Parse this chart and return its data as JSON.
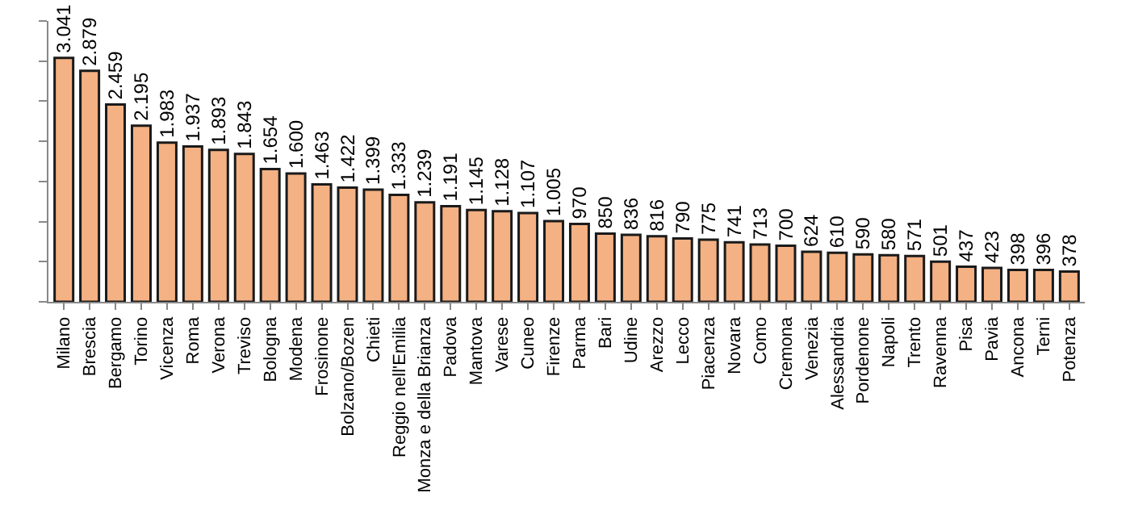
{
  "chart_data": {
    "type": "bar",
    "categories": [
      "Milano",
      "Brescia",
      "Bergamo",
      "Torino",
      "Vicenza",
      "Roma",
      "Verona",
      "Treviso",
      "Bologna",
      "Modena",
      "Frosinone",
      "Bolzano/Bozen",
      "Chieti",
      "Reggio nell'Emilia",
      "Monza e della Brianza",
      "Padova",
      "Mantova",
      "Varese",
      "Cuneo",
      "Firenze",
      "Parma",
      "Bari",
      "Udine",
      "Arezzo",
      "Lecco",
      "Piacenza",
      "Novara",
      "Como",
      "Cremona",
      "Venezia",
      "Alessandria",
      "Pordenone",
      "Napoli",
      "Trento",
      "Ravenna",
      "Pisa",
      "Pavia",
      "Ancona",
      "Terni",
      "Potenza"
    ],
    "values": [
      3041,
      2879,
      2459,
      2195,
      1983,
      1937,
      1893,
      1843,
      1654,
      1600,
      1463,
      1422,
      1399,
      1333,
      1239,
      1191,
      1145,
      1128,
      1107,
      1005,
      970,
      850,
      836,
      816,
      790,
      775,
      741,
      713,
      700,
      624,
      610,
      590,
      580,
      571,
      501,
      437,
      423,
      398,
      396,
      378
    ],
    "value_labels": [
      "3.041",
      "2.879",
      "2.459",
      "2.195",
      "1.983",
      "1.937",
      "1.893",
      "1.843",
      "1.654",
      "1.600",
      "1.463",
      "1.422",
      "1.399",
      "1.333",
      "1.239",
      "1.191",
      "1.145",
      "1.128",
      "1.107",
      "1.005",
      "970",
      "850",
      "836",
      "816",
      "790",
      "775",
      "741",
      "713",
      "700",
      "624",
      "610",
      "590",
      "580",
      "571",
      "501",
      "437",
      "423",
      "398",
      "396",
      "378"
    ],
    "color": "#f4b183",
    "ylim": [
      0,
      3500
    ],
    "yticks": [
      {
        "value": 0,
        "label": null
      },
      {
        "value": 500,
        "label": null
      },
      {
        "value": 1000,
        "label": null
      },
      {
        "value": 1500,
        "label": null
      },
      {
        "value": 2000,
        "label": null
      },
      {
        "value": 2500,
        "label": null
      },
      {
        "value": 3000,
        "label": null
      },
      {
        "value": 3500,
        "label": null
      }
    ],
    "tick_labels": "x"
  }
}
